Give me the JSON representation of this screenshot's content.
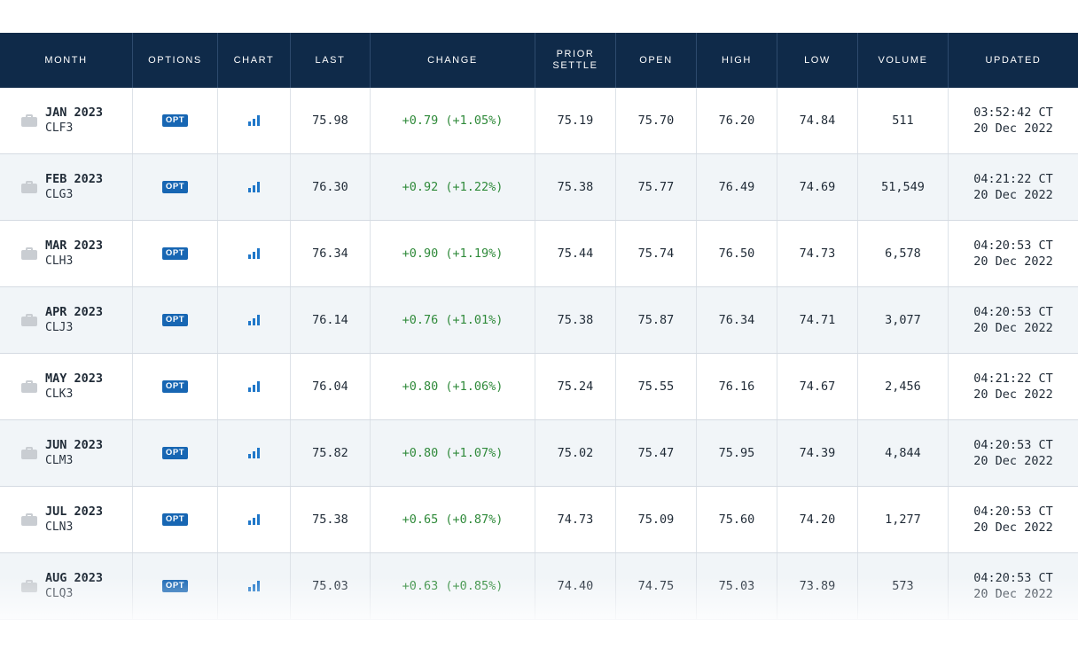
{
  "table": {
    "columns": [
      "MONTH",
      "OPTIONS",
      "CHART",
      "LAST",
      "CHANGE",
      "PRIOR SETTLE",
      "OPEN",
      "HIGH",
      "LOW",
      "VOLUME",
      "UPDATED"
    ],
    "option_badge": "OPT",
    "rows": [
      {
        "month": "JAN 2023",
        "code": "CLF3",
        "last": "75.98",
        "change": "+0.79 (+1.05%)",
        "prior_settle": "75.19",
        "open": "75.70",
        "high": "76.20",
        "low": "74.84",
        "volume": "511",
        "updated_time": "03:52:42 CT",
        "updated_date": "20 Dec 2022"
      },
      {
        "month": "FEB 2023",
        "code": "CLG3",
        "last": "76.30",
        "change": "+0.92 (+1.22%)",
        "prior_settle": "75.38",
        "open": "75.77",
        "high": "76.49",
        "low": "74.69",
        "volume": "51,549",
        "updated_time": "04:21:22 CT",
        "updated_date": "20 Dec 2022"
      },
      {
        "month": "MAR 2023",
        "code": "CLH3",
        "last": "76.34",
        "change": "+0.90 (+1.19%)",
        "prior_settle": "75.44",
        "open": "75.74",
        "high": "76.50",
        "low": "74.73",
        "volume": "6,578",
        "updated_time": "04:20:53 CT",
        "updated_date": "20 Dec 2022"
      },
      {
        "month": "APR 2023",
        "code": "CLJ3",
        "last": "76.14",
        "change": "+0.76 (+1.01%)",
        "prior_settle": "75.38",
        "open": "75.87",
        "high": "76.34",
        "low": "74.71",
        "volume": "3,077",
        "updated_time": "04:20:53 CT",
        "updated_date": "20 Dec 2022"
      },
      {
        "month": "MAY 2023",
        "code": "CLK3",
        "last": "76.04",
        "change": "+0.80 (+1.06%)",
        "prior_settle": "75.24",
        "open": "75.55",
        "high": "76.16",
        "low": "74.67",
        "volume": "2,456",
        "updated_time": "04:21:22 CT",
        "updated_date": "20 Dec 2022"
      },
      {
        "month": "JUN 2023",
        "code": "CLM3",
        "last": "75.82",
        "change": "+0.80 (+1.07%)",
        "prior_settle": "75.02",
        "open": "75.47",
        "high": "75.95",
        "low": "74.39",
        "volume": "4,844",
        "updated_time": "04:20:53 CT",
        "updated_date": "20 Dec 2022"
      },
      {
        "month": "JUL 2023",
        "code": "CLN3",
        "last": "75.38",
        "change": "+0.65 (+0.87%)",
        "prior_settle": "74.73",
        "open": "75.09",
        "high": "75.60",
        "low": "74.20",
        "volume": "1,277",
        "updated_time": "04:20:53 CT",
        "updated_date": "20 Dec 2022"
      },
      {
        "month": "AUG 2023",
        "code": "CLQ3",
        "last": "75.03",
        "change": "+0.63 (+0.85%)",
        "prior_settle": "74.40",
        "open": "74.75",
        "high": "75.03",
        "low": "73.89",
        "volume": "573",
        "updated_time": "04:20:53 CT",
        "updated_date": "20 Dec 2022"
      }
    ]
  },
  "icons": {
    "month": "briefcase-icon",
    "chart": "bar-chart-icon"
  },
  "colors": {
    "header_bg": "#0f2a49",
    "alt_row_bg": "#f1f5f8",
    "change_positive": "#2f8a3a",
    "badge_bg": "#1766b3",
    "chart_icon": "#1f77c9"
  }
}
